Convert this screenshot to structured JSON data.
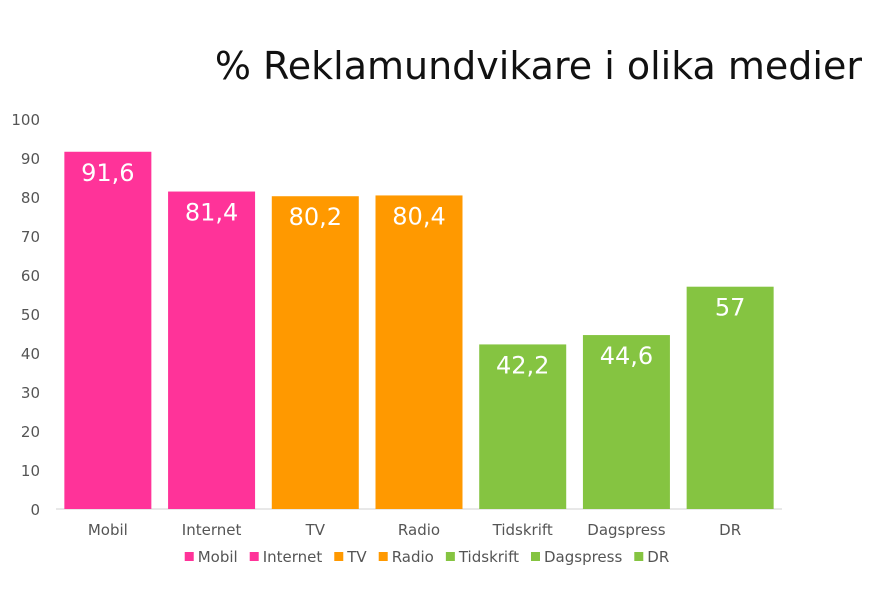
{
  "chart_data": {
    "type": "bar",
    "title": "% Reklamundvikare i olika medier",
    "categories": [
      "Mobil",
      "Internet",
      "TV",
      "Radio",
      "Tidskrift",
      "Dagspress",
      "DR"
    ],
    "values": [
      91.6,
      81.4,
      80.2,
      80.4,
      42.2,
      44.6,
      57
    ],
    "data_labels": [
      "91,6",
      "81,4",
      "80,2",
      "80,4",
      "42,2",
      "44,6",
      "57"
    ],
    "colors": [
      "#ff3399",
      "#ff3399",
      "#ff9900",
      "#ff9900",
      "#85c441",
      "#85c441",
      "#85c441"
    ],
    "ylim": [
      0,
      100
    ],
    "yticks": [
      0,
      10,
      20,
      30,
      40,
      50,
      60,
      70,
      80,
      90,
      100
    ],
    "xlabel": "",
    "ylabel": "",
    "grid": false,
    "legend": {
      "placement": "bottom",
      "entries": [
        "Mobil",
        "Internet",
        "TV",
        "Radio",
        "Tidskrift",
        "Dagspress",
        "DR"
      ]
    }
  }
}
